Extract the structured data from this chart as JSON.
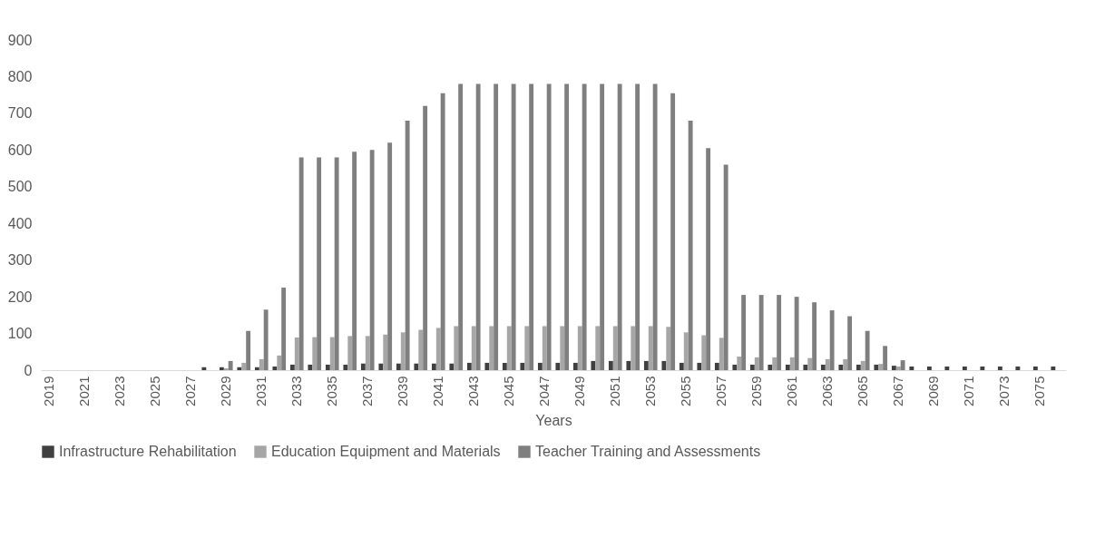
{
  "chart_data": {
    "type": "bar",
    "xlabel": "Years",
    "categories": [
      "2019",
      null,
      "2021",
      null,
      "2023",
      null,
      "2025",
      null,
      "2027",
      null,
      "2029",
      null,
      "2031",
      null,
      "2033",
      null,
      "2035",
      null,
      "2037",
      null,
      "2039",
      null,
      "2041",
      null,
      "2043",
      null,
      "2045",
      null,
      "2047",
      null,
      "2049",
      null,
      "2051",
      null,
      "2053",
      null,
      "2055",
      null,
      "2057",
      null,
      "2059",
      null,
      "2061",
      null,
      "2063",
      null,
      "2065",
      null,
      "2067",
      null,
      "2069",
      null,
      "2071",
      null,
      "2073",
      null,
      "2075",
      null
    ],
    "series": [
      {
        "name": "Infrastructure Rehabilitation",
        "color": "#404040",
        "values": [
          0,
          0,
          0,
          0,
          0,
          0,
          0,
          0,
          0,
          8,
          8,
          8,
          8,
          10,
          15,
          15,
          15,
          15,
          18,
          18,
          18,
          18,
          18,
          18,
          20,
          20,
          20,
          20,
          20,
          20,
          20,
          25,
          25,
          25,
          25,
          25,
          20,
          20,
          20,
          15,
          15,
          15,
          15,
          15,
          15,
          15,
          15,
          15,
          12,
          10,
          10,
          10,
          10,
          10,
          10,
          10,
          10,
          10
        ]
      },
      {
        "name": "Education Equipment and Materials",
        "color": "#a6a6a6",
        "values": [
          0,
          0,
          0,
          0,
          0,
          0,
          0,
          0,
          0,
          null,
          5,
          20,
          30,
          40,
          89,
          90,
          90,
          93,
          93,
          97,
          103,
          110,
          115,
          120,
          120,
          120,
          120,
          120,
          120,
          120,
          120,
          120,
          120,
          120,
          120,
          118,
          103,
          95,
          88,
          37,
          35,
          35,
          35,
          33,
          30,
          30,
          25,
          17,
          10,
          0,
          0,
          0,
          0,
          0,
          0,
          0,
          0,
          0
        ]
      },
      {
        "name": "Teacher Training and Assessments",
        "color": "#7f7f7f",
        "values": [
          0,
          0,
          0,
          0,
          0,
          0,
          0,
          0,
          0,
          0,
          25,
          107,
          165,
          225,
          580,
          580,
          580,
          595,
          600,
          620,
          680,
          720,
          755,
          780,
          780,
          780,
          780,
          780,
          780,
          780,
          780,
          780,
          780,
          780,
          780,
          755,
          680,
          605,
          560,
          205,
          205,
          205,
          200,
          185,
          163,
          147,
          107,
          66,
          27,
          0,
          0,
          0,
          0,
          0,
          0,
          0,
          0,
          0
        ]
      }
    ],
    "ylim": [
      0,
      900
    ],
    "yticks": [
      0,
      100,
      200,
      300,
      400,
      500,
      600,
      700,
      800,
      900
    ],
    "grid": false,
    "legend": "bottom"
  }
}
